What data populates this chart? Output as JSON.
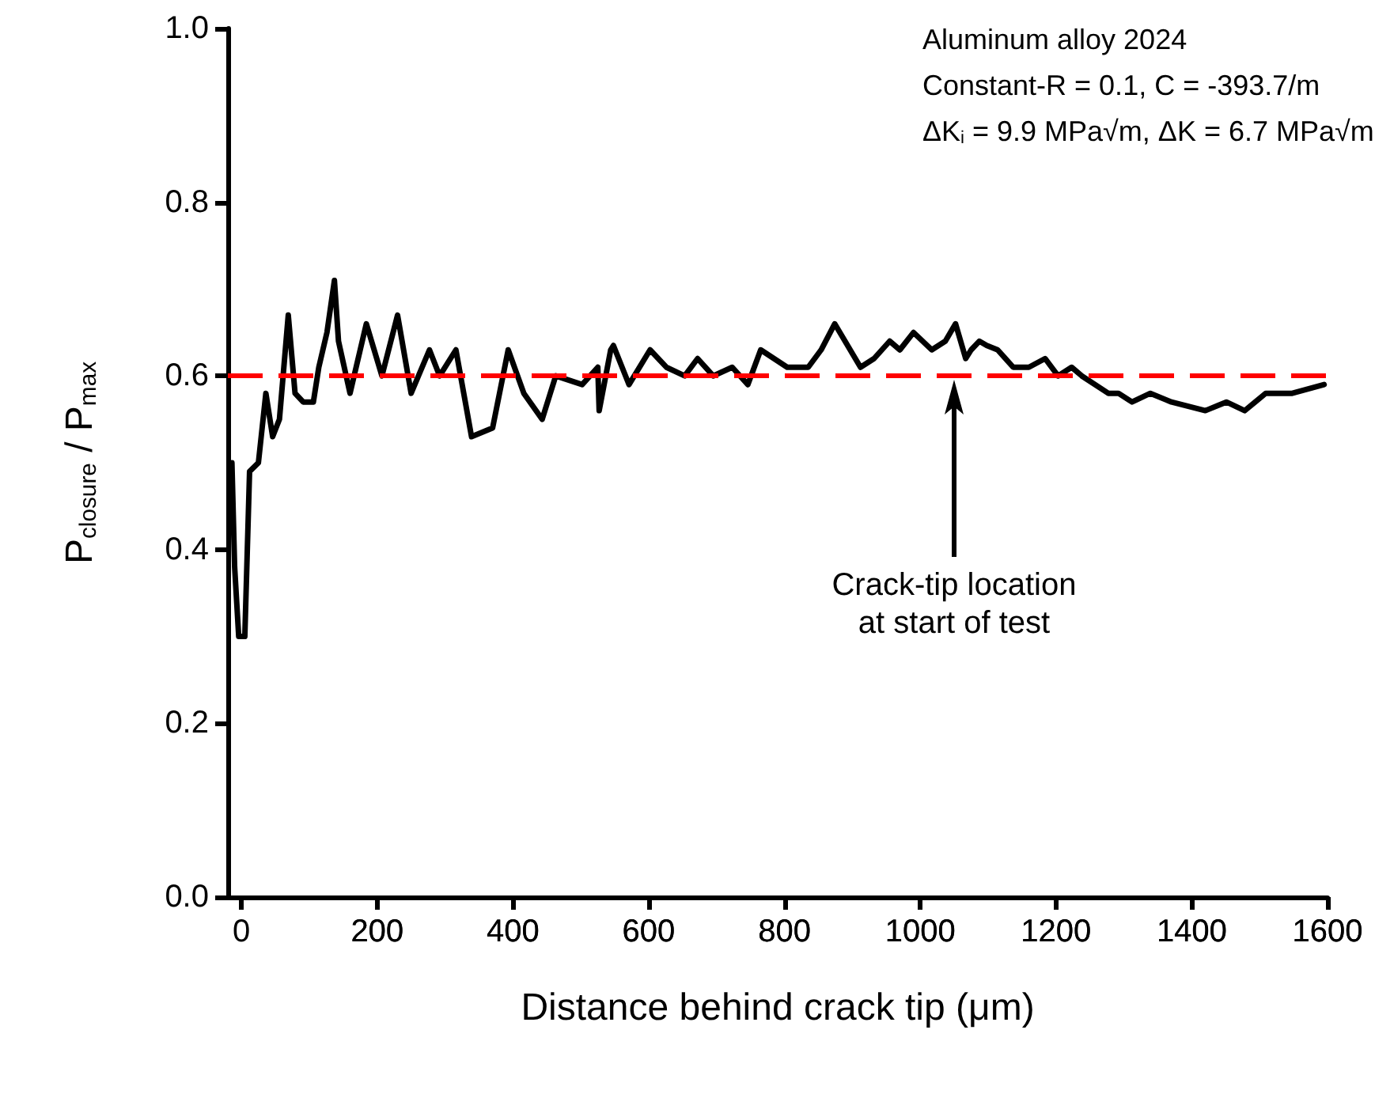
{
  "chart_data": {
    "type": "line",
    "xlabel": "Distance behind crack tip (μm)",
    "ylabel": "P$_{closure}$ / P$_{max}$",
    "x": [
      -14,
      -10,
      -4,
      5,
      12,
      25,
      36,
      46,
      56,
      69,
      79,
      91,
      106,
      114,
      126,
      137,
      143,
      160,
      184,
      207,
      230,
      250,
      277,
      292,
      316,
      339,
      370,
      393,
      416,
      443,
      463,
      502,
      525,
      527,
      544,
      548,
      571,
      602,
      626,
      653,
      672,
      695,
      723,
      746,
      765,
      804,
      835,
      854,
      874,
      912,
      932,
      955,
      970,
      990,
      1017,
      1037,
      1052,
      1067,
      1075,
      1087,
      1098,
      1114,
      1137,
      1160,
      1184,
      1203,
      1223,
      1238,
      1277,
      1292,
      1312,
      1339,
      1370,
      1420,
      1451,
      1478,
      1509,
      1548,
      1595
    ],
    "series": [
      {
        "color": "#000000",
        "values": [
          0.5,
          0.38,
          0.3,
          0.3,
          0.49,
          0.5,
          0.58,
          0.53,
          0.55,
          0.67,
          0.58,
          0.57,
          0.57,
          0.61,
          0.65,
          0.71,
          0.64,
          0.58,
          0.66,
          0.6,
          0.67,
          0.58,
          0.63,
          0.6,
          0.63,
          0.53,
          0.54,
          0.63,
          0.58,
          0.55,
          0.6,
          0.59,
          0.61,
          0.56,
          0.63,
          0.635,
          0.59,
          0.63,
          0.61,
          0.6,
          0.62,
          0.6,
          0.61,
          0.59,
          0.63,
          0.61,
          0.61,
          0.63,
          0.66,
          0.61,
          0.62,
          0.64,
          0.63,
          0.65,
          0.63,
          0.64,
          0.66,
          0.62,
          0.63,
          0.64,
          0.635,
          0.63,
          0.61,
          0.61,
          0.62,
          0.6,
          0.61,
          0.6,
          0.58,
          0.58,
          0.57,
          0.58,
          0.57,
          0.56,
          0.57,
          0.56,
          0.58,
          0.58,
          0.59
        ]
      }
    ],
    "xlim": [
      -20,
      1600
    ],
    "xticks": [
      0,
      200,
      400,
      600,
      800,
      1000,
      1200,
      1400,
      1600
    ],
    "ylim": [
      0,
      1.0
    ],
    "yticks": [
      {
        "value": 0,
        "label": "0.0"
      },
      0.2,
      0.4,
      0.6,
      0.8,
      {
        "value": 1,
        "label": "1.0"
      }
    ],
    "ref_lines": [
      {
        "axis": "y",
        "value": 0.6,
        "color": "#ff0000",
        "line_style": "dashed"
      }
    ],
    "annotations": [
      "Aluminum alloy 2024",
      "Constant-R = 0.1, C = -393.7/m",
      "ΔK$_{i}$ = 9.9 MPa√m, ΔK = 6.7 MPa√m",
      "Crack-tip location\nat start of test"
    ],
    "grid": false,
    "marker": "none",
    "line_style": "solid"
  }
}
